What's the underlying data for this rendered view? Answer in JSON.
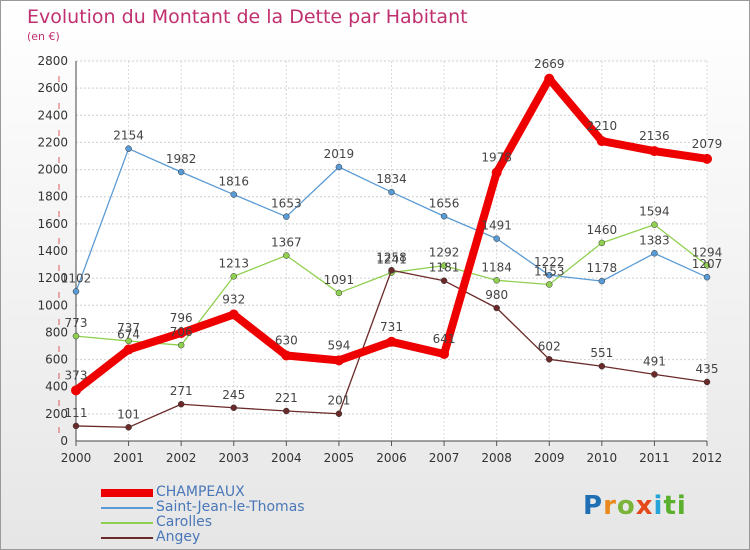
{
  "chart_data": {
    "type": "line",
    "title": "Evolution du Montant de la Dette par Habitant",
    "subtitle": "(en €)",
    "x": [
      "2000",
      "2001",
      "2002",
      "2003",
      "2004",
      "2005",
      "2006",
      "2007",
      "2008",
      "2009",
      "2010",
      "2011",
      "2012"
    ],
    "ylim": [
      0,
      2800
    ],
    "yticks": [
      0,
      200,
      400,
      600,
      800,
      1000,
      1200,
      1400,
      1600,
      1800,
      2000,
      2200,
      2400,
      2600,
      2800
    ],
    "grid": true,
    "legend_position": "bottom-left",
    "series": [
      {
        "name": "CHAMPEAUX",
        "color": "#ee0000",
        "values": [
          373,
          674,
          796,
          932,
          630,
          594,
          731,
          641,
          1978,
          2669,
          2210,
          2136,
          2079
        ]
      },
      {
        "name": "Saint-Jean-le-Thomas",
        "color": "#5b9bd5",
        "values": [
          1102,
          2154,
          1982,
          1816,
          1653,
          2019,
          1834,
          1656,
          1491,
          1222,
          1178,
          1383,
          1207
        ]
      },
      {
        "name": "Carolles",
        "color": "#90d050",
        "values": [
          773,
          737,
          706,
          1213,
          1367,
          1091,
          1241,
          1292,
          1184,
          1153,
          1460,
          1594,
          1294
        ]
      },
      {
        "name": "Angey",
        "color": "#6b2a2a",
        "values": [
          111,
          101,
          271,
          245,
          221,
          201,
          1258,
          1181,
          980,
          602,
          551,
          491,
          435
        ]
      }
    ]
  },
  "logo": {
    "letters": [
      "P",
      "r",
      "o",
      "x",
      "i",
      "t",
      "i"
    ]
  }
}
